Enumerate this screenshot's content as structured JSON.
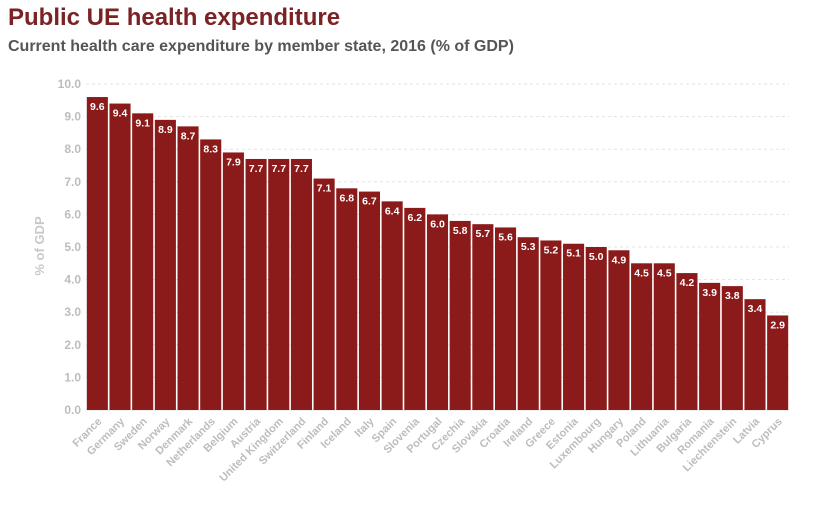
{
  "chart_data": {
    "type": "bar",
    "title": "Public UE health expenditure",
    "subtitle": "Current health care expenditure by member state, 2016 (% of GDP)",
    "ylabel": "% of GDP",
    "xlabel": "",
    "ylim": [
      0,
      10
    ],
    "yticks": [
      "0.0",
      "1.0",
      "2.0",
      "3.0",
      "4.0",
      "5.0",
      "6.0",
      "7.0",
      "8.0",
      "9.0",
      "10.0"
    ],
    "grid": true,
    "legend": "none",
    "bar_color": "#8b1a1a",
    "title_color": "#7b2324",
    "categories": [
      "France",
      "Germany",
      "Sweden",
      "Norway",
      "Denmark",
      "Netherlands",
      "Belgium",
      "Austria",
      "United Kingdom",
      "Switzerland",
      "Finland",
      "Iceland",
      "Italy",
      "Spain",
      "Slovenia",
      "Portugal",
      "Czechia",
      "Slovakia",
      "Croatia",
      "Ireland",
      "Greece",
      "Estonia",
      "Luxembourg",
      "Hungary",
      "Poland",
      "Lithuania",
      "Bulgaria",
      "Romania",
      "Liechtenstein",
      "Latvia",
      "Cyprus"
    ],
    "values": [
      9.6,
      9.4,
      9.1,
      8.9,
      8.7,
      8.3,
      7.9,
      7.7,
      7.7,
      7.7,
      7.1,
      6.8,
      6.7,
      6.4,
      6.2,
      6.0,
      5.8,
      5.7,
      5.6,
      5.3,
      5.2,
      5.1,
      5.0,
      4.9,
      4.5,
      4.5,
      4.2,
      3.9,
      3.8,
      3.4,
      2.9
    ],
    "value_labels": [
      "9.6",
      "9.4",
      "9.1",
      "8.9",
      "8.7",
      "8.3",
      "7.9",
      "7.7",
      "7.7",
      "7.7",
      "7.1",
      "6.8",
      "6.7",
      "6.4",
      "6.2",
      "6.0",
      "5.8",
      "5.7",
      "5.6",
      "5.3",
      "5.2",
      "5.1",
      "5.0",
      "4.9",
      "4.5",
      "4.5",
      "4.2",
      "3.9",
      "3.8",
      "3.4",
      "2.9"
    ]
  }
}
